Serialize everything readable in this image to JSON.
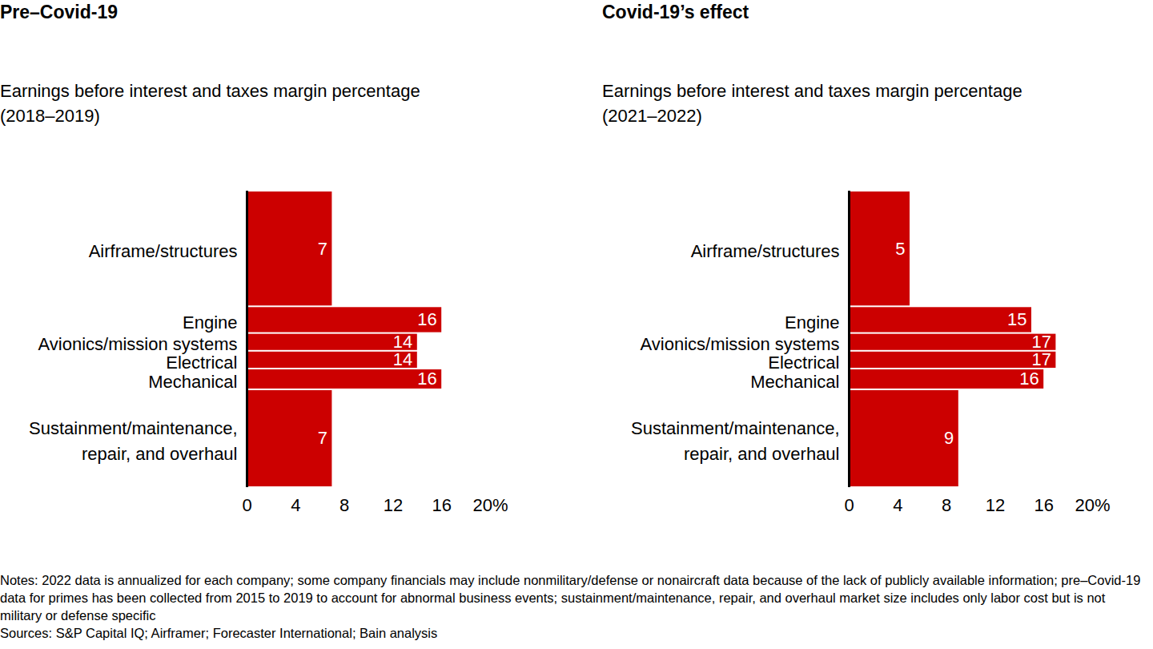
{
  "chart_data": [
    {
      "type": "bar",
      "orientation": "horizontal",
      "title": "Pre–Covid-19",
      "subtitle": "Earnings before interest and taxes margin percentage\n(2018–2019)",
      "categories": [
        "Airframe/structures",
        "Engine",
        "Avionics/mission systems",
        "Electrical",
        "Mechanical",
        "Sustainment/maintenance,\nrepair, and overhaul"
      ],
      "values": [
        7,
        16,
        14,
        14,
        16,
        7
      ],
      "bar_widths": [
        39,
        9,
        6,
        6,
        7,
        33
      ],
      "color": "#cc0000",
      "xlim": [
        0,
        20
      ],
      "xticks": [
        0,
        4,
        8,
        12,
        16,
        {
          "value": 20,
          "label": "20%"
        }
      ],
      "data_labels": true,
      "grid": false
    },
    {
      "type": "bar",
      "orientation": "horizontal",
      "title": "Covid-19’s effect",
      "subtitle": "Earnings before interest and taxes margin percentage\n(2021–2022)",
      "categories": [
        "Airframe/structures",
        "Engine",
        "Avionics/mission systems",
        "Electrical",
        "Mechanical",
        "Sustainment/maintenance,\nrepair, and overhaul"
      ],
      "values": [
        5,
        15,
        17,
        17,
        16,
        9
      ],
      "bar_widths": [
        39,
        9,
        6,
        6,
        7,
        33
      ],
      "color": "#cc0000",
      "xlim": [
        0,
        20
      ],
      "xticks": [
        0,
        4,
        8,
        12,
        16,
        {
          "value": 20,
          "label": "20%"
        }
      ],
      "data_labels": true,
      "grid": false
    }
  ],
  "notes": "Notes: 2022 data is annualized for each company; some company financials may include nonmilitary/defense or nonaircraft data because of the lack of publicly available information; pre–Covid-19 data for primes has been collected from 2015 to 2019 to account for abnormal business events; sustainment/maintenance, repair, and overhaul market size includes only labor cost but is not military or defense specific",
  "sources": "Sources: S&P Capital IQ; Airframer; Forecaster International; Bain analysis"
}
